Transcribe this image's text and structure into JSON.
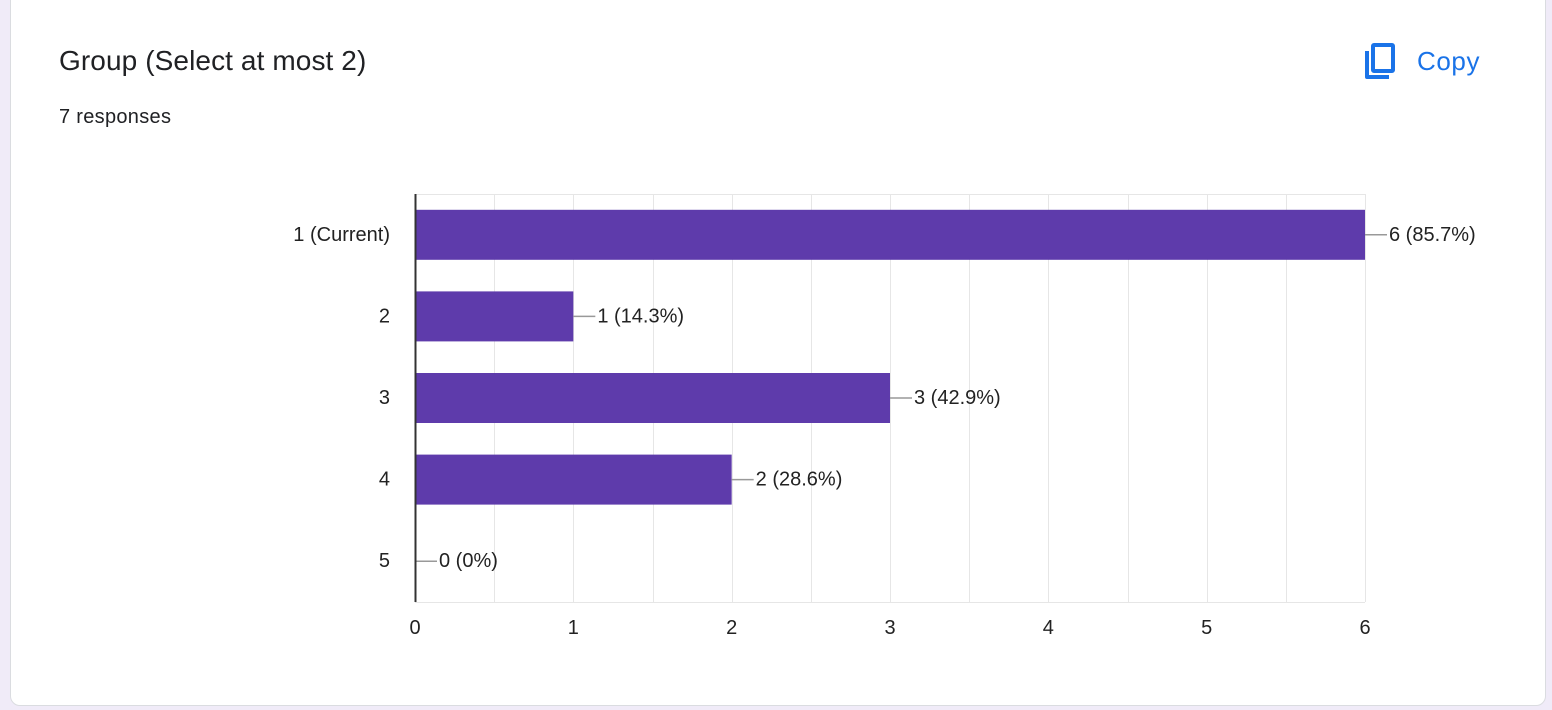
{
  "card": {
    "title": "Group (Select at most 2)",
    "responses": "7 responses",
    "copy_label": "Copy",
    "copy_icon": "copy-icon"
  },
  "colors": {
    "bar": "#5e3bab",
    "accent": "#1a73e8",
    "grid": "#e6e6e6",
    "axis": "#333333",
    "leader": "#999999"
  },
  "chart_data": {
    "type": "bar",
    "orientation": "horizontal",
    "categories": [
      "1 (Current)",
      "2",
      "3",
      "4",
      "5"
    ],
    "values": [
      6,
      1,
      3,
      2,
      0
    ],
    "data_labels": [
      "6 (85.7%)",
      "1 (14.3%)",
      "3 (42.9%)",
      "2 (28.6%)",
      "0 (0%)"
    ],
    "xlim": [
      0,
      6
    ],
    "x_ticks": [
      0,
      1,
      2,
      3,
      4,
      5,
      6
    ],
    "grid": true,
    "title": "",
    "xlabel": "",
    "ylabel": ""
  }
}
